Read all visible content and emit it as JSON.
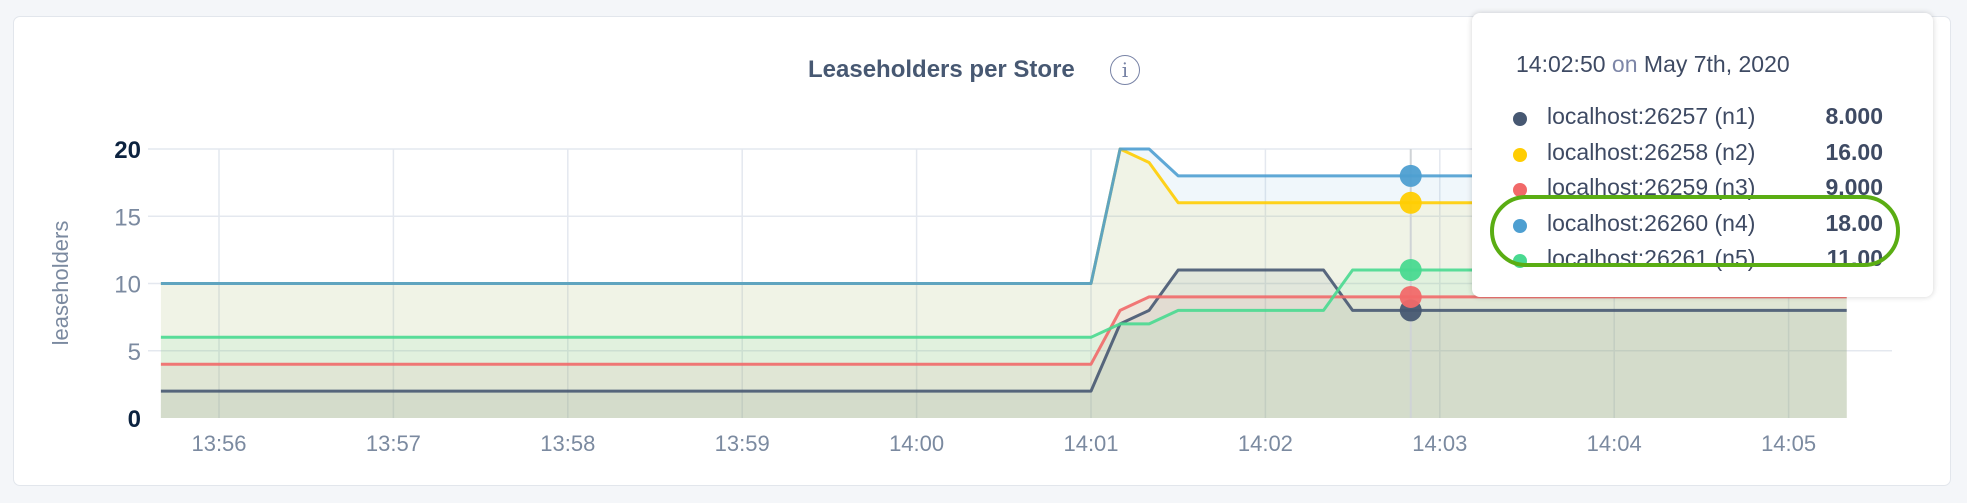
{
  "chart_data": {
    "type": "area",
    "title": "Leaseholders per Store",
    "title_icon": "info-icon",
    "ylabel": "leaseholders",
    "xlabel": "",
    "ylim": [
      0,
      20
    ],
    "y_ticks": [
      "0",
      "5",
      "10",
      "15",
      "20"
    ],
    "x_ticks": [
      "13:56",
      "13:57",
      "13:58",
      "13:59",
      "14:00",
      "14:01",
      "14:02",
      "14:03",
      "14:04",
      "14:05"
    ],
    "grid": true,
    "series": [
      {
        "name": "localhost:26257 (n1)",
        "color": "#475872",
        "points": [
          [
            "13:55:40",
            2
          ],
          [
            "14:01:00",
            2
          ],
          [
            "14:01:10",
            7
          ],
          [
            "14:01:20",
            8
          ],
          [
            "14:01:30",
            11
          ],
          [
            "14:02:20",
            11
          ],
          [
            "14:02:30",
            8
          ],
          [
            "14:05:20",
            8
          ]
        ]
      },
      {
        "name": "localhost:26258 (n2)",
        "color": "#ffcd02",
        "points": [
          [
            "13:55:40",
            10
          ],
          [
            "14:01:00",
            10
          ],
          [
            "14:01:10",
            20
          ],
          [
            "14:01:20",
            19
          ],
          [
            "14:01:30",
            16
          ],
          [
            "14:05:20",
            16
          ]
        ]
      },
      {
        "name": "localhost:26259 (n3)",
        "color": "#f16969",
        "points": [
          [
            "13:55:40",
            4
          ],
          [
            "14:01:00",
            4
          ],
          [
            "14:01:10",
            8
          ],
          [
            "14:01:20",
            9
          ],
          [
            "14:05:20",
            9
          ]
        ]
      },
      {
        "name": "localhost:26260 (n4)",
        "color": "#4e9fd1",
        "points": [
          [
            "13:55:40",
            10
          ],
          [
            "14:01:00",
            10
          ],
          [
            "14:01:10",
            20
          ],
          [
            "14:01:20",
            20
          ],
          [
            "14:01:30",
            18
          ],
          [
            "14:05:20",
            18
          ]
        ]
      },
      {
        "name": "localhost:26261 (n5)",
        "color": "#49d990",
        "points": [
          [
            "13:55:40",
            6
          ],
          [
            "14:01:00",
            6
          ],
          [
            "14:01:10",
            7
          ],
          [
            "14:01:20",
            7
          ],
          [
            "14:01:30",
            8
          ],
          [
            "14:02:20",
            8
          ],
          [
            "14:02:30",
            11
          ],
          [
            "14:05:20",
            11
          ]
        ]
      }
    ],
    "hover_time": "14:02:50"
  },
  "tooltip": {
    "time": "14:02:50",
    "on": "on",
    "date": "May 7th, 2020",
    "rows": [
      {
        "label": "localhost:26257 (n1)",
        "value": "8.000",
        "color": "#475872"
      },
      {
        "label": "localhost:26258 (n2)",
        "value": "16.00",
        "color": "#ffcd02"
      },
      {
        "label": "localhost:26259 (n3)",
        "value": "9.000",
        "color": "#f16969"
      },
      {
        "label": "localhost:26260 (n4)",
        "value": "18.00",
        "color": "#4e9fd1"
      },
      {
        "label": "localhost:26261 (n5)",
        "value": "11.00",
        "color": "#49d990"
      }
    ],
    "highlight_color": "#5aad13"
  }
}
